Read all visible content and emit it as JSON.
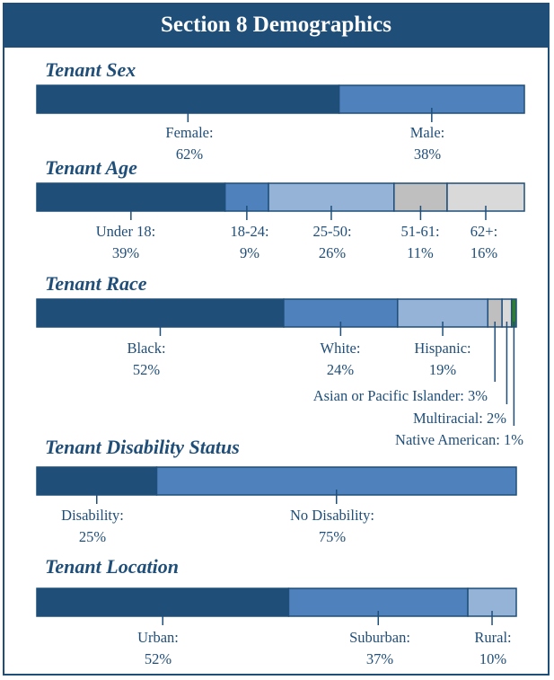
{
  "title": "Section 8 Demographics",
  "colors": {
    "frame": "#1f4e79",
    "dark_blue": "#1f4e79",
    "mid_blue": "#4f81bd",
    "light_blue": "#95b3d7",
    "gray": "#bfbfbf",
    "light_gray": "#d9d9d9",
    "green": "#2e7d32"
  },
  "chart_data": [
    {
      "type": "bar",
      "subtype": "100%-stacked-horizontal",
      "title": "Tenant Sex",
      "categories": [
        "Female:",
        "Male:"
      ],
      "values": [
        62,
        38
      ],
      "value_labels": [
        "62%",
        "38%"
      ],
      "colors": [
        "#1f4e79",
        "#4f81bd"
      ]
    },
    {
      "type": "bar",
      "subtype": "100%-stacked-horizontal",
      "title": "Tenant Age",
      "categories": [
        "Under 18:",
        "18-24:",
        "25-50:",
        "51-61:",
        "62+:"
      ],
      "values": [
        39,
        9,
        26,
        11,
        16
      ],
      "value_labels": [
        "39%",
        "9%",
        "26%",
        "11%",
        "16%"
      ],
      "colors": [
        "#1f4e79",
        "#4f81bd",
        "#95b3d7",
        "#bfbfbf",
        "#d9d9d9"
      ]
    },
    {
      "type": "bar",
      "subtype": "100%-stacked-horizontal",
      "title": "Tenant Race",
      "categories": [
        "Black:",
        "White:",
        "Hispanic:",
        "Asian or Pacific Islander:",
        "Multiracial:",
        "Native American:"
      ],
      "values": [
        52,
        24,
        19,
        3,
        2,
        1
      ],
      "value_labels": [
        "52%",
        "24%",
        "19%",
        "3%",
        "2%",
        "1%"
      ],
      "colors": [
        "#1f4e79",
        "#4f81bd",
        "#95b3d7",
        "#bfbfbf",
        "#d9d9d9",
        "#2e7d32"
      ]
    },
    {
      "type": "bar",
      "subtype": "100%-stacked-horizontal",
      "title": "Tenant Disability Status",
      "categories": [
        "Disability:",
        "No Disability:"
      ],
      "values": [
        25,
        75
      ],
      "value_labels": [
        "25%",
        "75%"
      ],
      "colors": [
        "#1f4e79",
        "#4f81bd"
      ]
    },
    {
      "type": "bar",
      "subtype": "100%-stacked-horizontal",
      "title": "Tenant Location",
      "categories": [
        "Urban:",
        "Suburban:",
        "Rural:"
      ],
      "values": [
        52,
        37,
        10
      ],
      "value_labels": [
        "52%",
        "37%",
        "10%"
      ],
      "colors": [
        "#1f4e79",
        "#4f81bd",
        "#95b3d7"
      ]
    }
  ]
}
